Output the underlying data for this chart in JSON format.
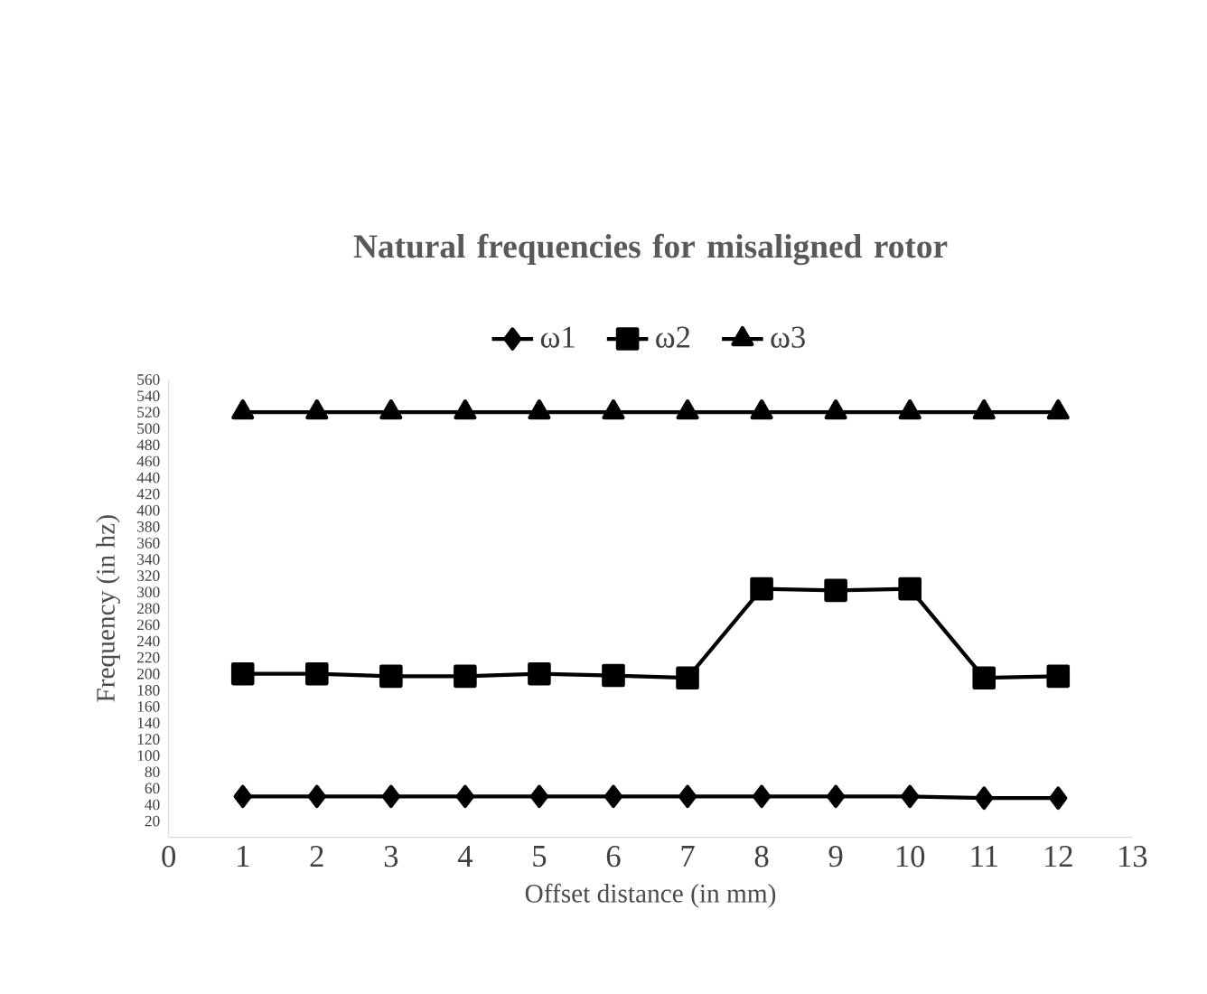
{
  "chart_data": {
    "type": "line",
    "title": "Natural frequencies for misaligned rotor",
    "xlabel": "Offset distance (in mm)",
    "ylabel": "Frequency (in hz)",
    "x": [
      1,
      2,
      3,
      4,
      5,
      6,
      7,
      8,
      9,
      10,
      11,
      12
    ],
    "series": [
      {
        "name": "ω1",
        "color": "#000000",
        "marker": "diamond",
        "values": [
          50,
          50,
          50,
          50,
          50,
          50,
          50,
          50,
          50,
          50,
          48,
          48
        ]
      },
      {
        "name": "ω2",
        "color": "#000000",
        "marker": "square",
        "values": [
          200,
          200,
          197,
          197,
          200,
          198,
          195,
          304,
          302,
          304,
          195,
          197
        ]
      },
      {
        "name": "ω3",
        "color": "#000000",
        "marker": "triangle",
        "values": [
          520,
          520,
          520,
          520,
          520,
          520,
          520,
          520,
          520,
          520,
          520,
          520
        ]
      }
    ],
    "xlim": [
      0,
      13
    ],
    "xticks": [
      0,
      1,
      2,
      3,
      4,
      5,
      6,
      7,
      8,
      9,
      10,
      11,
      12,
      13
    ],
    "ylim": [
      0,
      560
    ],
    "yticks": [
      20,
      40,
      60,
      80,
      100,
      120,
      140,
      160,
      180,
      200,
      220,
      240,
      260,
      280,
      300,
      320,
      340,
      360,
      380,
      400,
      420,
      440,
      460,
      480,
      500,
      520,
      540,
      560
    ],
    "grid": false,
    "legend": "top",
    "line_style": "solid"
  }
}
